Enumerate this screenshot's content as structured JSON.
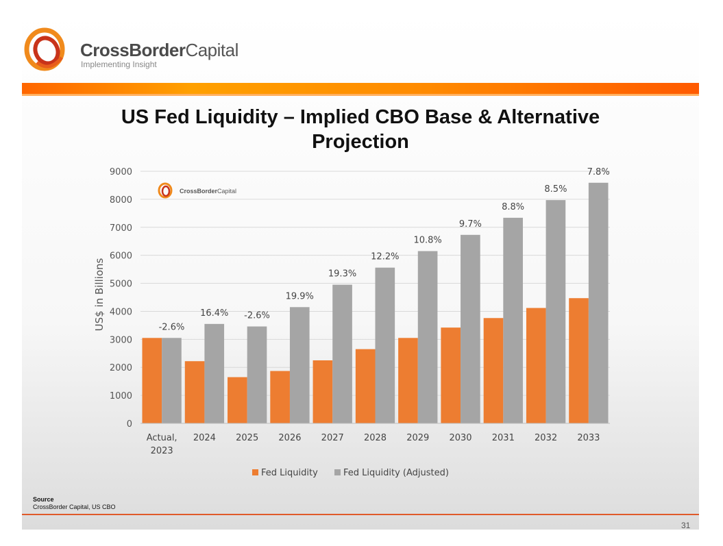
{
  "brand": {
    "name_bold": "CrossBorder",
    "name_light": "Capital",
    "tagline": "Implementing Insight",
    "watermark_name_bold": "CrossBorder",
    "watermark_name_light": "Capital"
  },
  "slide": {
    "title_line1": "US Fed Liquidity – Implied CBO Base & Alternative",
    "title_line2": "Projection",
    "source_label": "Source",
    "source_text": "CrossBorder Capital, US CBO",
    "page_number": "31"
  },
  "colors": {
    "orange": "#ED7D31",
    "gray": "#A5A5A5",
    "accent": "#ff6600"
  },
  "chart_data": {
    "type": "bar",
    "title": "US Fed Liquidity – Implied CBO Base & Alternative Projection",
    "xlabel": "",
    "ylabel": "US$ in Billions",
    "ylim": [
      0,
      9000
    ],
    "yticks": [
      0,
      1000,
      2000,
      3000,
      4000,
      5000,
      6000,
      7000,
      8000,
      9000
    ],
    "grid": true,
    "legend": "bottom",
    "categories": [
      [
        "Actual,",
        "2023"
      ],
      [
        "2024"
      ],
      [
        "2025"
      ],
      [
        "2026"
      ],
      [
        "2027"
      ],
      [
        "2028"
      ],
      [
        "2029"
      ],
      [
        "2030"
      ],
      [
        "2031"
      ],
      [
        "2032"
      ],
      [
        "2033"
      ]
    ],
    "series": [
      {
        "name": "Fed Liquidity",
        "color": "#ED7D31",
        "values": [
          3050,
          2220,
          1650,
          1870,
          2250,
          2650,
          3050,
          3420,
          3760,
          4120,
          4470
        ]
      },
      {
        "name": "Fed Liquidity (Adjusted)",
        "color": "#A5A5A5",
        "values": [
          3050,
          3550,
          3460,
          4150,
          4950,
          5560,
          6150,
          6730,
          7340,
          7970,
          8590
        ],
        "labels": [
          "-2.6%",
          "16.4%",
          "-2.6%",
          "19.9%",
          "19.3%",
          "12.2%",
          "10.8%",
          "9.7%",
          "8.8%",
          "8.5%",
          "7.8%"
        ]
      }
    ]
  }
}
